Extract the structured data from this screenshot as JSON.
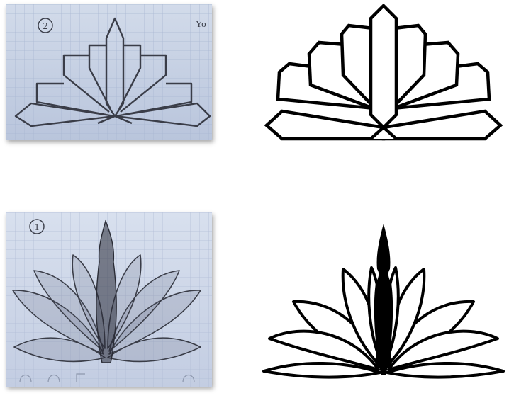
{
  "sketch_two": {
    "number_label": "2",
    "margin_note": "Yo"
  },
  "sketch_one": {
    "number_label": "1"
  },
  "colors": {
    "paper": "#c9d3e6",
    "grid_line": "#a9b7d2",
    "pencil": "#3a3d48",
    "ink": "#000000",
    "background": "#ffffff"
  }
}
